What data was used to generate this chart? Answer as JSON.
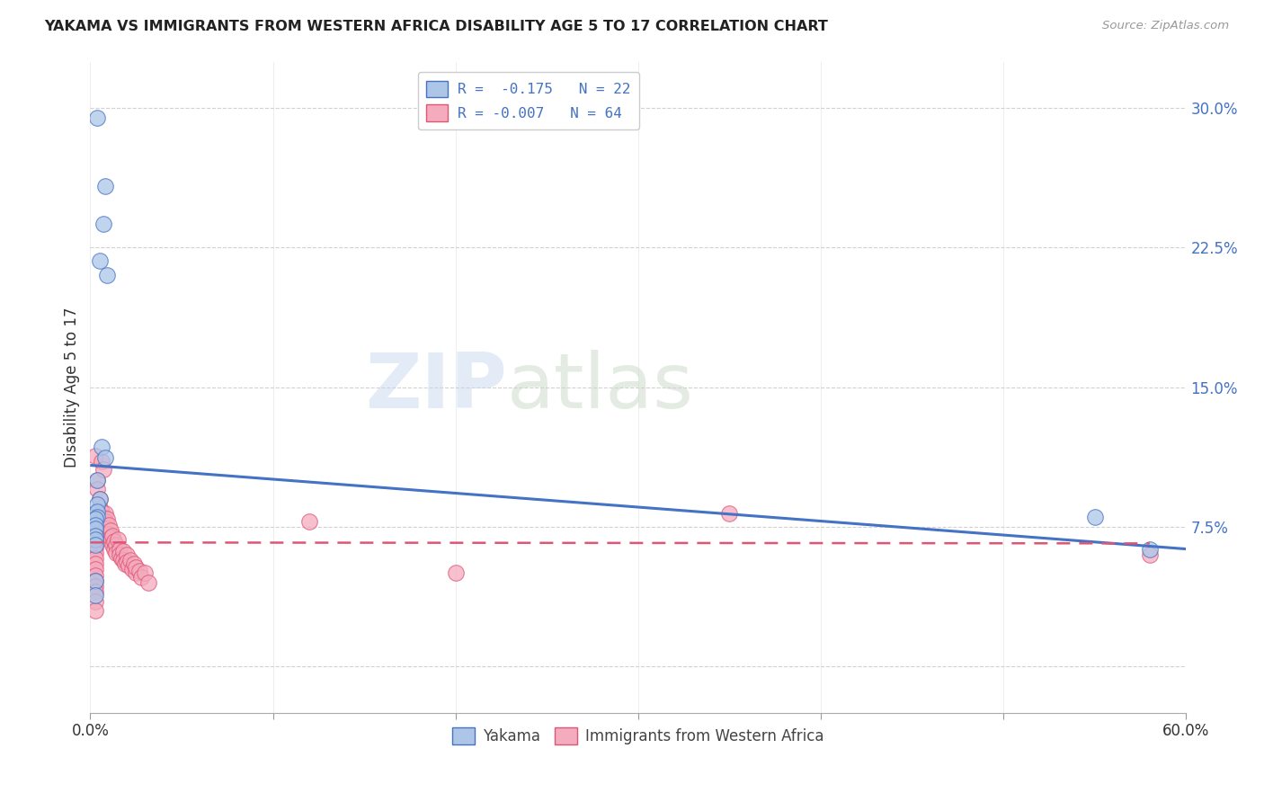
{
  "title": "YAKAMA VS IMMIGRANTS FROM WESTERN AFRICA DISABILITY AGE 5 TO 17 CORRELATION CHART",
  "source": "Source: ZipAtlas.com",
  "ylabel": "Disability Age 5 to 17",
  "yticks": [
    0.0,
    0.075,
    0.15,
    0.225,
    0.3
  ],
  "ytick_labels": [
    "",
    "7.5%",
    "15.0%",
    "22.5%",
    "30.0%"
  ],
  "xticks": [
    0.0,
    0.1,
    0.2,
    0.3,
    0.4,
    0.5,
    0.6
  ],
  "xlim": [
    0.0,
    0.6
  ],
  "ylim": [
    -0.025,
    0.325
  ],
  "legend_r1": "R =  -0.175   N = 22",
  "legend_r2": "R = -0.007   N = 64",
  "watermark_zip": "ZIP",
  "watermark_atlas": "atlas",
  "yakama_color": "#adc6e8",
  "immigrants_color": "#f4abbe",
  "yakama_line_color": "#4472c4",
  "immigrants_line_color": "#e05575",
  "yakama_x": [
    0.004,
    0.008,
    0.007,
    0.005,
    0.009,
    0.006,
    0.008,
    0.004,
    0.005,
    0.004,
    0.004,
    0.004,
    0.003,
    0.003,
    0.003,
    0.003,
    0.003,
    0.003,
    0.55,
    0.58,
    0.003,
    0.003
  ],
  "yakama_y": [
    0.295,
    0.258,
    0.238,
    0.218,
    0.21,
    0.118,
    0.112,
    0.1,
    0.09,
    0.087,
    0.083,
    0.08,
    0.079,
    0.076,
    0.074,
    0.07,
    0.068,
    0.065,
    0.08,
    0.063,
    0.046,
    0.038
  ],
  "immigrants_x": [
    0.003,
    0.004,
    0.004,
    0.005,
    0.005,
    0.006,
    0.006,
    0.006,
    0.007,
    0.007,
    0.007,
    0.008,
    0.008,
    0.008,
    0.009,
    0.009,
    0.01,
    0.01,
    0.01,
    0.011,
    0.011,
    0.012,
    0.012,
    0.013,
    0.013,
    0.014,
    0.014,
    0.015,
    0.016,
    0.016,
    0.017,
    0.018,
    0.018,
    0.019,
    0.02,
    0.02,
    0.021,
    0.022,
    0.023,
    0.024,
    0.025,
    0.025,
    0.027,
    0.028,
    0.03,
    0.032,
    0.003,
    0.003,
    0.003,
    0.003,
    0.003,
    0.003,
    0.003,
    0.003,
    0.003,
    0.003,
    0.003,
    0.12,
    0.35,
    0.2,
    0.58,
    0.003,
    0.003,
    0.003
  ],
  "immigrants_y": [
    0.113,
    0.1,
    0.095,
    0.09,
    0.085,
    0.11,
    0.083,
    0.078,
    0.106,
    0.08,
    0.075,
    0.082,
    0.078,
    0.072,
    0.079,
    0.074,
    0.076,
    0.071,
    0.068,
    0.073,
    0.069,
    0.07,
    0.065,
    0.067,
    0.063,
    0.065,
    0.061,
    0.068,
    0.063,
    0.06,
    0.058,
    0.062,
    0.057,
    0.055,
    0.06,
    0.056,
    0.054,
    0.057,
    0.052,
    0.055,
    0.05,
    0.053,
    0.051,
    0.048,
    0.05,
    0.045,
    0.073,
    0.07,
    0.067,
    0.064,
    0.061,
    0.058,
    0.055,
    0.052,
    0.049,
    0.046,
    0.043,
    0.078,
    0.082,
    0.05,
    0.06,
    0.04,
    0.035,
    0.03
  ],
  "blue_line_x": [
    0.0,
    0.6
  ],
  "blue_line_y": [
    0.108,
    0.063
  ],
  "pink_line_x": [
    0.0,
    0.58
  ],
  "pink_line_y": [
    0.0665,
    0.066
  ]
}
